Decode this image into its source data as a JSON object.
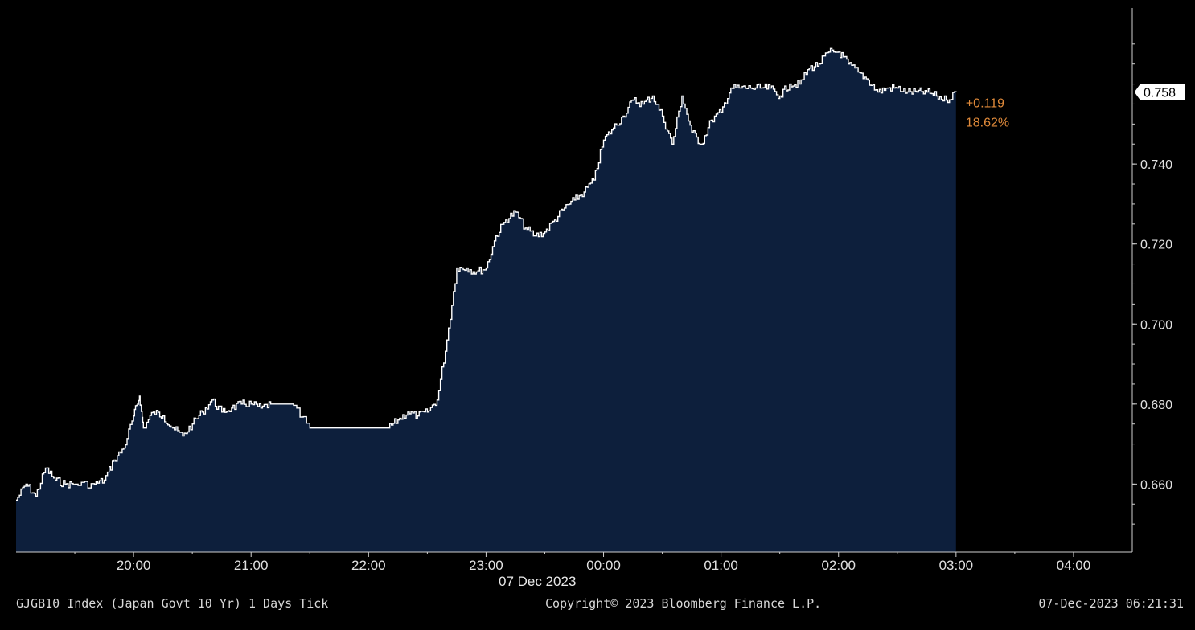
{
  "footer": {
    "left": "GJGB10 Index (Japan Govt 10 Yr) 1 Days  Tick",
    "center": "Copyright© 2023 Bloomberg Finance L.P.",
    "right": "07-Dec-2023 06:21:31"
  },
  "chart_data": {
    "type": "area",
    "title": "",
    "xlabel": "07 Dec 2023",
    "ylabel": "",
    "x_ticks": [
      "20:00",
      "21:00",
      "22:00",
      "23:00",
      "00:00",
      "01:00",
      "02:00",
      "03:00",
      "04:00"
    ],
    "y_ticks": [
      "0.660",
      "0.680",
      "0.700",
      "0.720",
      "0.740"
    ],
    "ylim": [
      0.643,
      0.779
    ],
    "xlim": [
      "19:00",
      "04:30"
    ],
    "last_value": "0.758",
    "change": "+0.119",
    "change_pct": "18.62%",
    "colors": {
      "background": "#000000",
      "fill": "#0d1f3c",
      "line": "#ffffff",
      "accent": "#e08a3a",
      "axis": "#cfcfcf"
    },
    "series": [
      {
        "x": [
          "19:00",
          "19:05",
          "19:10",
          "19:15",
          "19:20",
          "19:25",
          "19:30",
          "19:40",
          "19:45",
          "19:50",
          "19:55",
          "20:00",
          "20:03",
          "20:05",
          "20:10",
          "20:15",
          "20:20",
          "20:25",
          "20:30",
          "20:35",
          "20:40",
          "20:45",
          "20:50",
          "20:55",
          "21:00",
          "21:05",
          "21:10",
          "21:20",
          "21:30",
          "21:40",
          "21:50",
          "22:00",
          "22:10",
          "22:15",
          "22:20",
          "22:25",
          "22:30",
          "22:35",
          "22:40",
          "22:45",
          "22:50",
          "22:55",
          "23:00",
          "23:05",
          "23:10",
          "23:15",
          "23:20",
          "23:25",
          "23:30",
          "23:35",
          "23:40",
          "23:45",
          "23:50",
          "23:55",
          "00:00",
          "00:05",
          "00:10",
          "00:15",
          "00:20",
          "00:25",
          "00:30",
          "00:35",
          "00:40",
          "00:45",
          "00:50",
          "00:55",
          "01:00",
          "01:05",
          "01:10",
          "01:15",
          "01:20",
          "01:25",
          "01:30",
          "01:35",
          "01:40",
          "01:45",
          "01:50",
          "01:55",
          "02:00",
          "02:05",
          "02:10",
          "02:15",
          "02:20",
          "02:25",
          "02:30",
          "02:35",
          "02:40",
          "02:45",
          "02:50",
          "02:55",
          "03:00"
        ],
        "y": [
          0.656,
          0.66,
          0.657,
          0.664,
          0.661,
          0.66,
          0.66,
          0.66,
          0.661,
          0.666,
          0.669,
          0.677,
          0.682,
          0.674,
          0.678,
          0.677,
          0.674,
          0.672,
          0.675,
          0.678,
          0.681,
          0.678,
          0.679,
          0.68,
          0.68,
          0.679,
          0.68,
          0.68,
          0.674,
          0.674,
          0.674,
          0.674,
          0.674,
          0.676,
          0.678,
          0.677,
          0.678,
          0.681,
          0.696,
          0.714,
          0.714,
          0.713,
          0.714,
          0.722,
          0.726,
          0.728,
          0.724,
          0.722,
          0.723,
          0.726,
          0.729,
          0.731,
          0.733,
          0.736,
          0.746,
          0.749,
          0.752,
          0.756,
          0.755,
          0.757,
          0.752,
          0.745,
          0.757,
          0.748,
          0.745,
          0.751,
          0.753,
          0.759,
          0.759,
          0.759,
          0.759,
          0.759,
          0.757,
          0.76,
          0.76,
          0.764,
          0.765,
          0.768,
          0.768,
          0.765,
          0.763,
          0.761,
          0.758,
          0.759,
          0.759,
          0.758,
          0.758,
          0.758,
          0.757,
          0.756,
          0.758
        ]
      }
    ]
  }
}
